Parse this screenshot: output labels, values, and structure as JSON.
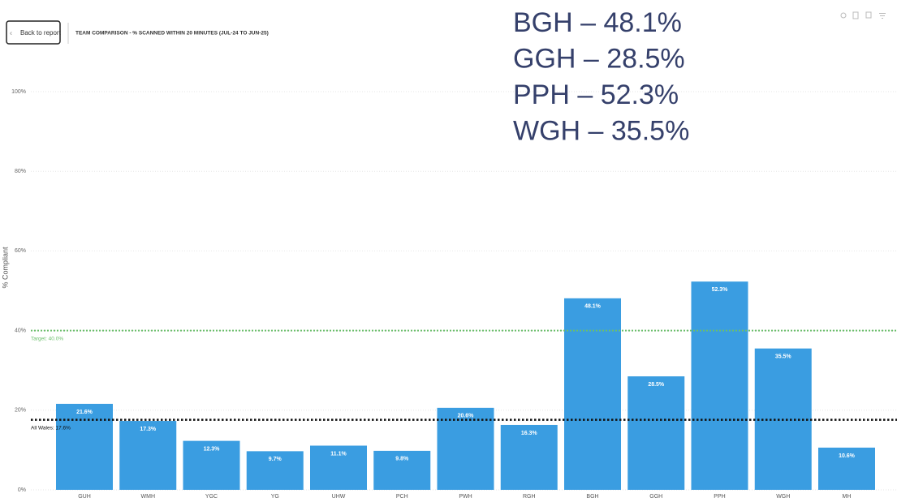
{
  "header": {
    "back": "Back to report"
  },
  "chart_data": {
    "type": "bar",
    "title": "TEAM COMPARISON - % SCANNED WITHIN 20 MINUTES (JUL-24 TO JUN-25)",
    "y_label": "% Compliant",
    "categories": [
      "GUH",
      "WMH",
      "YGC",
      "YG",
      "UHW",
      "PCH",
      "PWH",
      "RGH",
      "BGH",
      "GGH",
      "PPH",
      "WGH",
      "MH"
    ],
    "values": [
      21.6,
      17.3,
      12.3,
      9.7,
      11.1,
      9.8,
      20.6,
      16.3,
      48.1,
      28.5,
      52.3,
      35.5,
      10.6
    ],
    "value_labels": [
      "21.6%",
      "17.3%",
      "12.3%",
      "9.7%",
      "11.1%",
      "9.8%",
      "20.6%",
      "16.3%",
      "48.1%",
      "28.5%",
      "52.3%",
      "35.5%",
      "10.6%"
    ],
    "color": "#3a9de1",
    "ylim": [
      0,
      100
    ],
    "yticks": [
      {
        "value": 0,
        "label": "0%"
      },
      {
        "value": 20,
        "label": "20%"
      },
      {
        "value": 40,
        "label": "40%"
      },
      {
        "value": 60,
        "label": "60%"
      },
      {
        "value": 80,
        "label": "80%"
      },
      {
        "value": 100,
        "label": "100%"
      }
    ],
    "grid": true,
    "reference_lines": [
      {
        "value": 40,
        "label": "Target: 40.0%",
        "color": "#6cbf6c"
      },
      {
        "value": 17.6,
        "label": "All Wales: 17.6%",
        "color": "#111111"
      }
    ],
    "annotations": [
      "BGH – 48.1%",
      "GGH – 28.5%",
      "PPH – 52.3%",
      "WGH – 35.5%"
    ]
  }
}
